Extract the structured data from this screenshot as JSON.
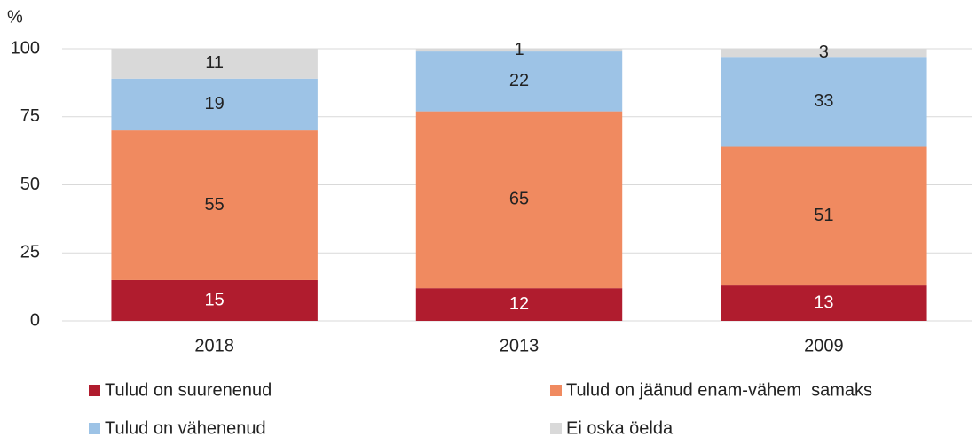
{
  "chart_data": {
    "type": "stacked_bar",
    "y_label": "%",
    "categories": [
      "2018",
      "2013",
      "2009"
    ],
    "series": [
      {
        "name": "Tulud on suurenenud",
        "color": "#b01c2e",
        "values": [
          15,
          12,
          13
        ]
      },
      {
        "name": "Tulud on jäänud enam-vähem  samaks",
        "color": "#f08a60",
        "values": [
          55,
          65,
          51
        ]
      },
      {
        "name": "Tulud on vähenenud",
        "color": "#9dc3e6",
        "values": [
          19,
          22,
          33
        ]
      },
      {
        "name": "Ei oska öelda",
        "color": "#d9d9d9",
        "values": [
          11,
          1,
          3
        ]
      }
    ],
    "ylim": [
      0,
      100
    ],
    "yticks": [
      0,
      25,
      50,
      75,
      100
    ],
    "grid": true
  }
}
